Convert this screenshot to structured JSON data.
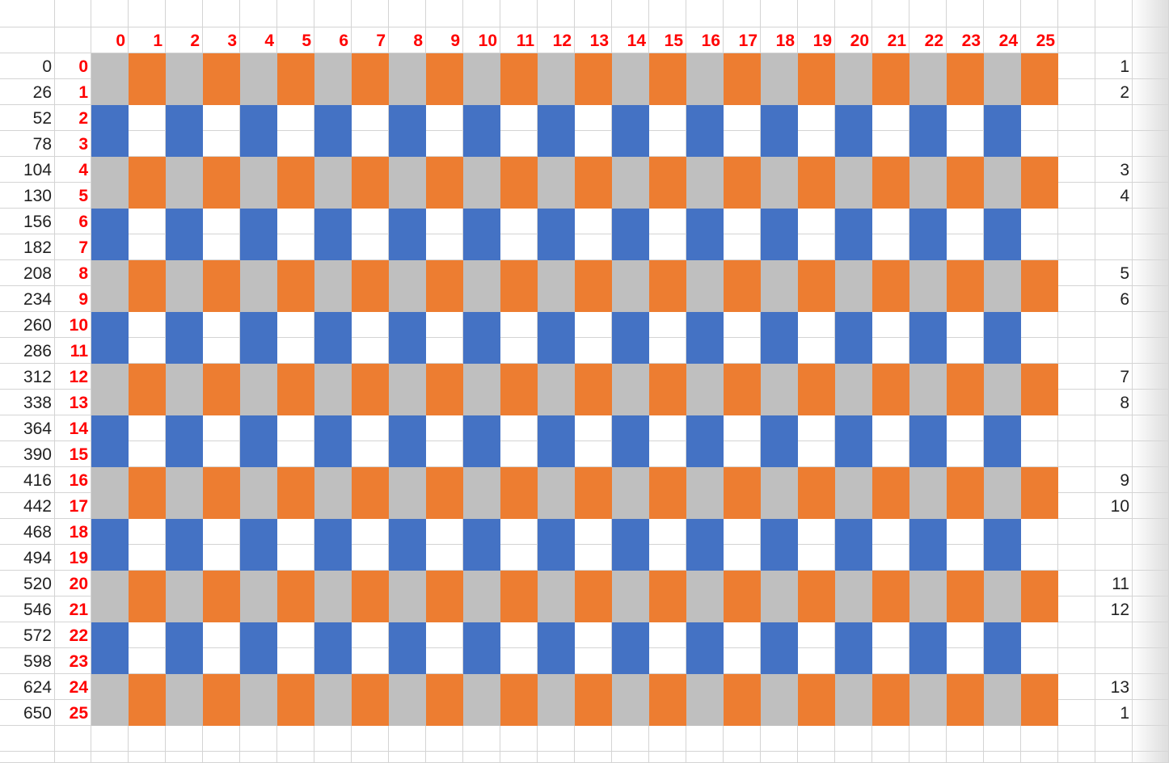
{
  "colors": {
    "orange": "#ED7D31",
    "gray": "#BFBFBF",
    "blue": "#4472C4",
    "white": "#FFFFFF",
    "index_red": "#FF0000",
    "gridline": "#D4D4D4"
  },
  "column_indices": [
    "0",
    "1",
    "2",
    "3",
    "4",
    "5",
    "6",
    "7",
    "8",
    "9",
    "10",
    "11",
    "12",
    "13",
    "14",
    "15",
    "16",
    "17",
    "18",
    "19",
    "20",
    "21",
    "22",
    "23",
    "24",
    "25"
  ],
  "rows": [
    {
      "offset": "0",
      "index": "0",
      "right": "1"
    },
    {
      "offset": "26",
      "index": "1",
      "right": "2"
    },
    {
      "offset": "52",
      "index": "2",
      "right": ""
    },
    {
      "offset": "78",
      "index": "3",
      "right": ""
    },
    {
      "offset": "104",
      "index": "4",
      "right": "3"
    },
    {
      "offset": "130",
      "index": "5",
      "right": "4"
    },
    {
      "offset": "156",
      "index": "6",
      "right": ""
    },
    {
      "offset": "182",
      "index": "7",
      "right": ""
    },
    {
      "offset": "208",
      "index": "8",
      "right": "5"
    },
    {
      "offset": "234",
      "index": "9",
      "right": "6"
    },
    {
      "offset": "260",
      "index": "10",
      "right": ""
    },
    {
      "offset": "286",
      "index": "11",
      "right": ""
    },
    {
      "offset": "312",
      "index": "12",
      "right": "7"
    },
    {
      "offset": "338",
      "index": "13",
      "right": "8"
    },
    {
      "offset": "364",
      "index": "14",
      "right": ""
    },
    {
      "offset": "390",
      "index": "15",
      "right": ""
    },
    {
      "offset": "416",
      "index": "16",
      "right": "9"
    },
    {
      "offset": "442",
      "index": "17",
      "right": "10"
    },
    {
      "offset": "468",
      "index": "18",
      "right": ""
    },
    {
      "offset": "494",
      "index": "19",
      "right": ""
    },
    {
      "offset": "520",
      "index": "20",
      "right": "11"
    },
    {
      "offset": "546",
      "index": "21",
      "right": "12"
    },
    {
      "offset": "572",
      "index": "22",
      "right": ""
    },
    {
      "offset": "598",
      "index": "23",
      "right": ""
    },
    {
      "offset": "624",
      "index": "24",
      "right": "13"
    },
    {
      "offset": "650",
      "index": "25",
      "right": "1"
    }
  ],
  "pattern": {
    "band_a_colors": [
      "gray",
      "orange"
    ],
    "band_b_colors": [
      "blue",
      "white"
    ]
  }
}
